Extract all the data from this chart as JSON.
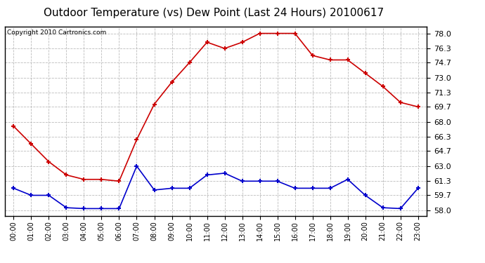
{
  "title": "Outdoor Temperature (vs) Dew Point (Last 24 Hours) 20100617",
  "copyright": "Copyright 2010 Cartronics.com",
  "hours": [
    "00:00",
    "01:00",
    "02:00",
    "03:00",
    "04:00",
    "05:00",
    "06:00",
    "07:00",
    "08:00",
    "09:00",
    "10:00",
    "11:00",
    "12:00",
    "13:00",
    "14:00",
    "15:00",
    "16:00",
    "17:00",
    "18:00",
    "19:00",
    "20:00",
    "21:00",
    "22:00",
    "23:00"
  ],
  "temp": [
    67.5,
    65.5,
    63.5,
    62.0,
    61.5,
    61.5,
    61.3,
    66.0,
    70.0,
    72.5,
    74.7,
    77.0,
    76.3,
    77.0,
    78.0,
    78.0,
    78.0,
    75.5,
    75.0,
    75.0,
    73.5,
    72.0,
    70.2,
    69.7
  ],
  "dew": [
    60.5,
    59.7,
    59.7,
    58.3,
    58.2,
    58.2,
    58.2,
    63.0,
    60.3,
    60.5,
    60.5,
    62.0,
    62.2,
    61.3,
    61.3,
    61.3,
    60.5,
    60.5,
    60.5,
    61.5,
    59.7,
    58.3,
    58.2,
    60.5
  ],
  "ylim_min": 57.4,
  "ylim_max": 78.8,
  "yticks": [
    58.0,
    59.7,
    61.3,
    63.0,
    64.7,
    66.3,
    68.0,
    69.7,
    71.3,
    73.0,
    74.7,
    76.3,
    78.0
  ],
  "temp_color": "#cc0000",
  "dew_color": "#0000cc",
  "bg_color": "#ffffff",
  "grid_color": "#bbbbbb",
  "title_fontsize": 11,
  "copyright_fontsize": 6.5,
  "tick_fontsize": 8,
  "xlabel_fontsize": 7
}
